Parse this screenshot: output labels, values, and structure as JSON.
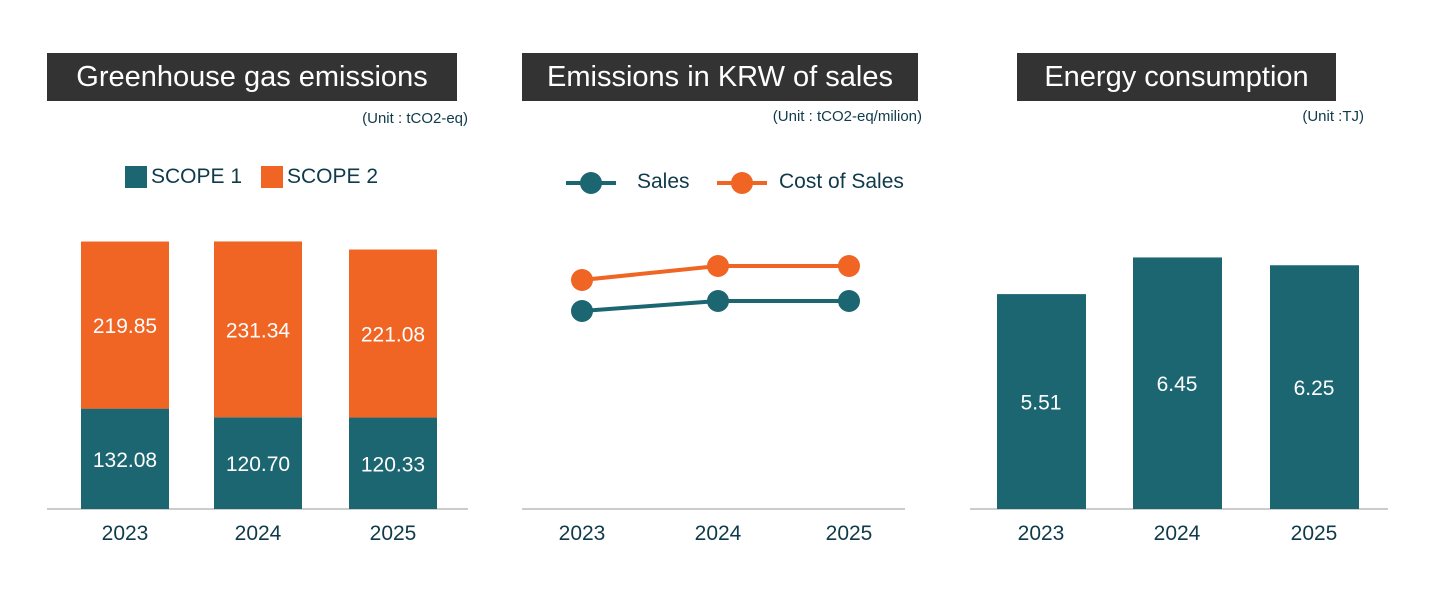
{
  "colors": {
    "scope1": "#1b6670",
    "scope2": "#f06424",
    "title_bg": "#333333",
    "axis": "#999999"
  },
  "chart_data": [
    {
      "type": "bar",
      "stacked": true,
      "title": "Greenhouse gas emissions",
      "unit": "(Unit : tCO2-eq)",
      "categories": [
        "2023",
        "2024",
        "2025"
      ],
      "series": [
        {
          "name": "SCOPE 1",
          "values": [
            132.08,
            120.7,
            120.33
          ]
        },
        {
          "name": "SCOPE 2",
          "values": [
            219.85,
            231.34,
            221.08
          ]
        }
      ],
      "legend": "top",
      "grid": false,
      "data_labels": true
    },
    {
      "type": "line",
      "title": "Emissions in KRW of sales",
      "unit": "(Unit : tCO2-eq/milion)",
      "categories": [
        "2023",
        "2024",
        "2025"
      ],
      "series": [
        {
          "name": "Sales",
          "values": [
            1.98,
            2.08,
            2.08
          ]
        },
        {
          "name": "Cost of Sales",
          "values": [
            2.29,
            2.43,
            2.43
          ]
        }
      ],
      "legend": "top",
      "grid": false,
      "data_labels": false
    },
    {
      "type": "bar",
      "title": "Energy consumption",
      "unit": "(Unit :TJ)",
      "categories": [
        "2023",
        "2024",
        "2025"
      ],
      "values": [
        5.51,
        6.45,
        6.25
      ],
      "grid": false,
      "data_labels": true
    }
  ]
}
